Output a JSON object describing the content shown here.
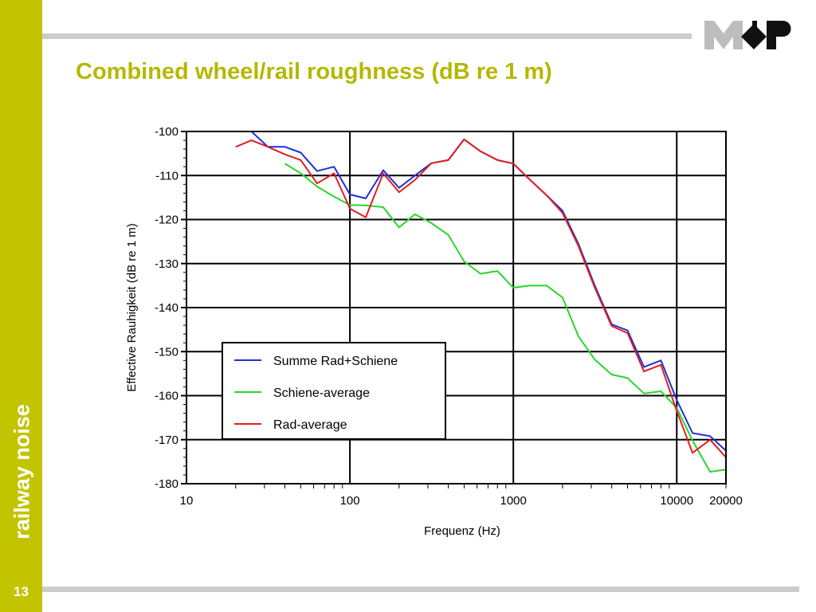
{
  "sidebar": {
    "label": "railway noise",
    "page_number": "13"
  },
  "slide": {
    "title": "Combined wheel/rail roughness (dB re 1 m)"
  },
  "logo": {
    "name": "company logo"
  },
  "colors": {
    "sidebar": "#c2c400",
    "title": "#b5b800",
    "rule": "#cccccc"
  },
  "chart_data": {
    "type": "line",
    "title": "",
    "xlabel": "Frequenz (Hz)",
    "ylabel": "Effective Rauhigkeit (dB re 1 m)",
    "xscale": "log",
    "xlim": [
      10,
      20000
    ],
    "ylim": [
      -180,
      -100
    ],
    "x_ticks": [
      10,
      100,
      1000,
      10000,
      20000
    ],
    "x_tick_labels": [
      "10",
      "100",
      "1000",
      "10000",
      "20000"
    ],
    "y_ticks": [
      -100,
      -110,
      -120,
      -130,
      -140,
      -150,
      -160,
      -170,
      -180
    ],
    "y_tick_labels": [
      "-100",
      "-110",
      "-120",
      "-130",
      "-140",
      "-150",
      "-160",
      "-170",
      "-180"
    ],
    "grid": true,
    "legend": "bottom-left",
    "series": [
      {
        "name": "Summe Rad+Schiene",
        "color": "#1f2fd6",
        "x": [
          25,
          31.5,
          40,
          50,
          63,
          80,
          100,
          125,
          160,
          200,
          250,
          315,
          400,
          500,
          630,
          800,
          1000,
          1250,
          1600,
          2000,
          2500,
          3150,
          4000,
          5000,
          6300,
          8000,
          10000,
          12500,
          16000,
          20000
        ],
        "y": [
          -100,
          -103.5,
          -103.5,
          -104.8,
          -109,
          -108,
          -114.3,
          -115.2,
          -108.8,
          -112.8,
          -110,
          -107.2,
          -106.5,
          -101.8,
          -104.5,
          -106.5,
          -107.3,
          -110.8,
          -114.5,
          -118,
          -125.5,
          -135,
          -143.8,
          -145.2,
          -153.5,
          -152,
          -161,
          -168.5,
          -169.2,
          -172.5
        ]
      },
      {
        "name": "Schiene-average",
        "color": "#29d629",
        "x": [
          40,
          50,
          63,
          80,
          100,
          125,
          160,
          200,
          250,
          315,
          400,
          500,
          630,
          800,
          1000,
          1250,
          1600,
          2000,
          2500,
          3150,
          4000,
          5000,
          6300,
          8000,
          10000,
          12500,
          16000,
          20000
        ],
        "y": [
          -107.3,
          -109.5,
          -112.5,
          -114.8,
          -116.7,
          -116.8,
          -117.2,
          -121.8,
          -118.8,
          -120.8,
          -123.5,
          -129.5,
          -132.3,
          -131.7,
          -135.5,
          -135,
          -135,
          -137.7,
          -146.5,
          -151.8,
          -155.2,
          -156,
          -159.5,
          -159,
          -162.8,
          -170.2,
          -177.3,
          -176.8
        ]
      },
      {
        "name": "Rad-average",
        "color": "#e01f1f",
        "x": [
          20,
          25,
          31.5,
          40,
          50,
          63,
          80,
          100,
          125,
          160,
          200,
          250,
          315,
          400,
          500,
          630,
          800,
          1000,
          1250,
          1600,
          2000,
          2500,
          3150,
          4000,
          5000,
          6300,
          8000,
          10000,
          12500,
          16000,
          20000
        ],
        "y": [
          -103.5,
          -102,
          -103.5,
          -105.2,
          -106.5,
          -111.8,
          -109.5,
          -117.5,
          -119.5,
          -109.5,
          -113.8,
          -111,
          -107.2,
          -106.5,
          -101.8,
          -104.5,
          -106.5,
          -107.3,
          -110.8,
          -114.5,
          -118.5,
          -126,
          -135.5,
          -144.2,
          -145.8,
          -154.5,
          -153,
          -163.5,
          -173,
          -170,
          -174
        ]
      }
    ]
  }
}
